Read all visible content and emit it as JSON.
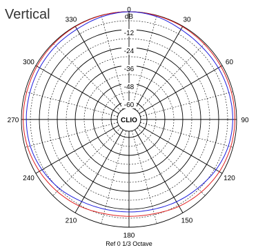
{
  "chart_data": {
    "type": "polar",
    "title": "Vertical",
    "unit_label": "dB",
    "footer": "Ref 0   1/3 Octave",
    "center_label": "CLIO",
    "r_range": [
      -72,
      0
    ],
    "ring_step": 6,
    "ring_labels": [
      "-12",
      "-24",
      "-36",
      "-48",
      "-60"
    ],
    "ring_label_values": [
      -12,
      -24,
      -36,
      -48,
      -60
    ],
    "angle_labels": [
      "0",
      "30",
      "60",
      "90",
      "120",
      "150",
      "180",
      "210",
      "240",
      "270",
      "300",
      "330"
    ],
    "angle_label_values": [
      0,
      30,
      60,
      90,
      120,
      150,
      180,
      210,
      240,
      270,
      300,
      330
    ],
    "grid": true,
    "series": [
      {
        "color": "#e01b1b",
        "angles": [
          0,
          15,
          30,
          45,
          60,
          75,
          90,
          105,
          120,
          135,
          150,
          165,
          180,
          195,
          210,
          225,
          240,
          255,
          270,
          285,
          300,
          315,
          330,
          345
        ],
        "values": [
          0,
          -0.2,
          -0.4,
          -0.8,
          -1.0,
          -1.1,
          -1.2,
          -1.5,
          -2.2,
          -3.5,
          -5.0,
          -6.8,
          -7.3,
          -6.9,
          -5.3,
          -4.0,
          -2.8,
          -1.7,
          -1.2,
          -1.2,
          -0.9,
          -0.6,
          -0.3,
          -0.1
        ]
      },
      {
        "color": "#1c1cdc",
        "angles": [
          0,
          15,
          30,
          45,
          60,
          75,
          90,
          105,
          120,
          135,
          150,
          165,
          180,
          195,
          210,
          225,
          240,
          255,
          270,
          285,
          300,
          315,
          330,
          345
        ],
        "values": [
          0,
          -0.8,
          -2.5,
          -3.2,
          -3.0,
          -2.8,
          -2.6,
          -3.2,
          -4.8,
          -7.0,
          -8.5,
          -9.8,
          -10.2,
          -9.9,
          -8.7,
          -6.5,
          -4.8,
          -3.6,
          -3.3,
          -3.3,
          -3.0,
          -2.6,
          -2.3,
          -1.0
        ]
      }
    ]
  }
}
